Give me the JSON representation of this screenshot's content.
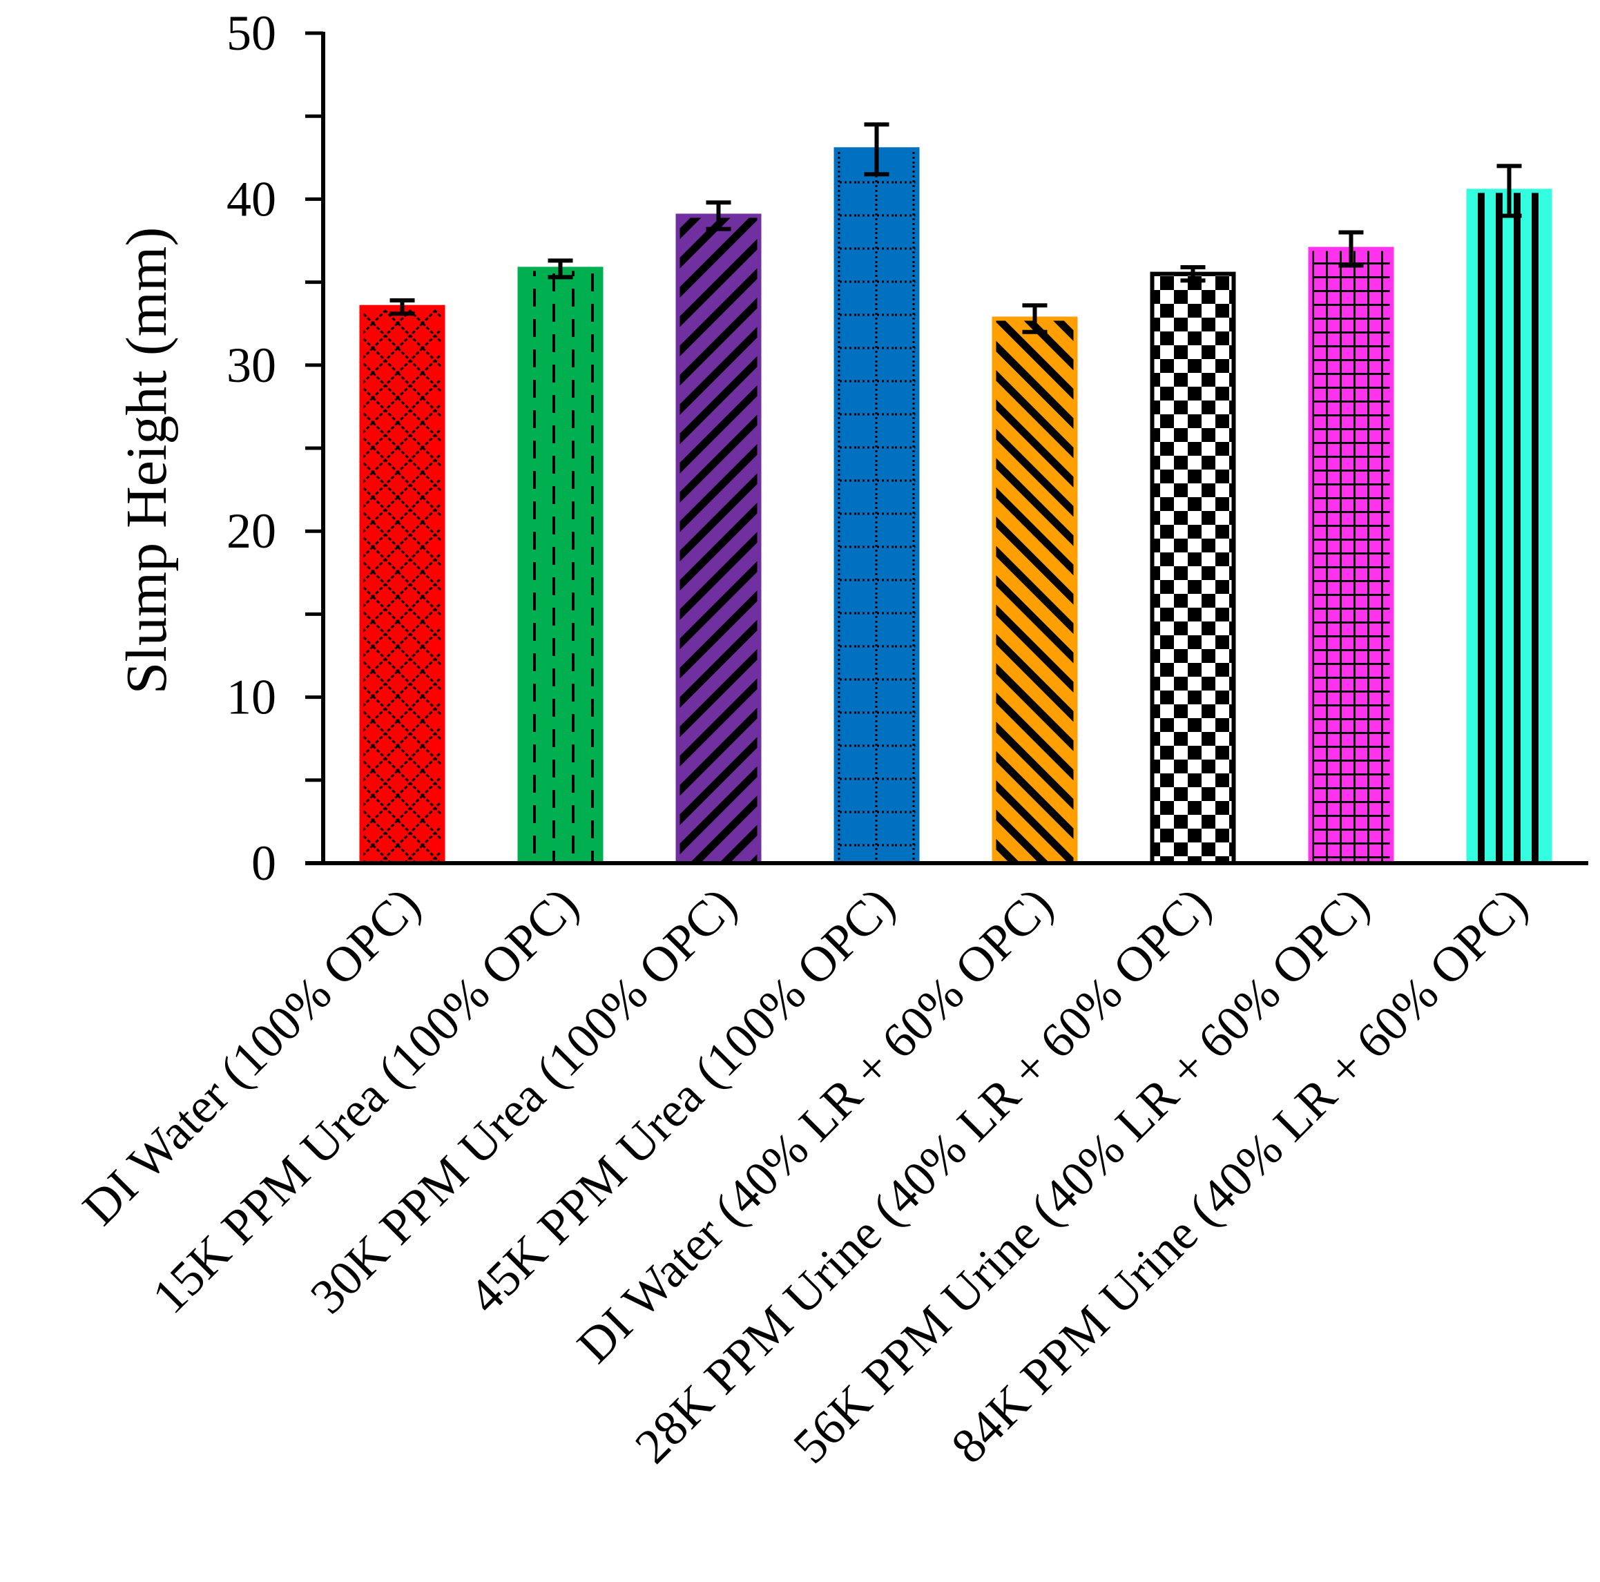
{
  "chart_data": {
    "type": "bar",
    "title": "",
    "xlabel": "",
    "ylabel": "Slump Height (mm)",
    "ylim": [
      0,
      50
    ],
    "yticks": [
      0,
      10,
      20,
      30,
      40,
      50
    ],
    "yticks_label": [
      "0",
      "10",
      "20",
      "30",
      "40",
      "50"
    ],
    "legend": "none",
    "grid": false,
    "categories": [
      "DI Water (100% OPC)",
      "15K PPM Urea (100% OPC)",
      "30K PPM Urea (100% OPC)",
      "45K PPM Urea (100% OPC)",
      "DI Water (40% LR + 60% OPC)",
      "28K PPM Urine (40% LR + 60% OPC)",
      "56K PPM Urine (40% LR + 60% OPC)",
      "84K PPM Urine (40% LR + 60% OPC)"
    ],
    "values": [
      33.5,
      35.8,
      39.0,
      43.0,
      32.8,
      35.5,
      37.0,
      40.5
    ],
    "errors": [
      0.4,
      0.5,
      0.8,
      1.5,
      0.8,
      0.4,
      1.0,
      1.5
    ],
    "colors": [
      "#ff0000",
      "#00b050",
      "#7030a0",
      "#0070c0",
      "#ffa000",
      "#ffffff",
      "#ff33ee",
      "#33ffe0"
    ],
    "patterns": [
      "diamond-lattice",
      "dashed-vertical",
      "wide-upward-diagonal",
      "dotted-grid",
      "wide-downward-diagonal",
      "checkerboard",
      "small-grid",
      "wide-vertical"
    ]
  }
}
